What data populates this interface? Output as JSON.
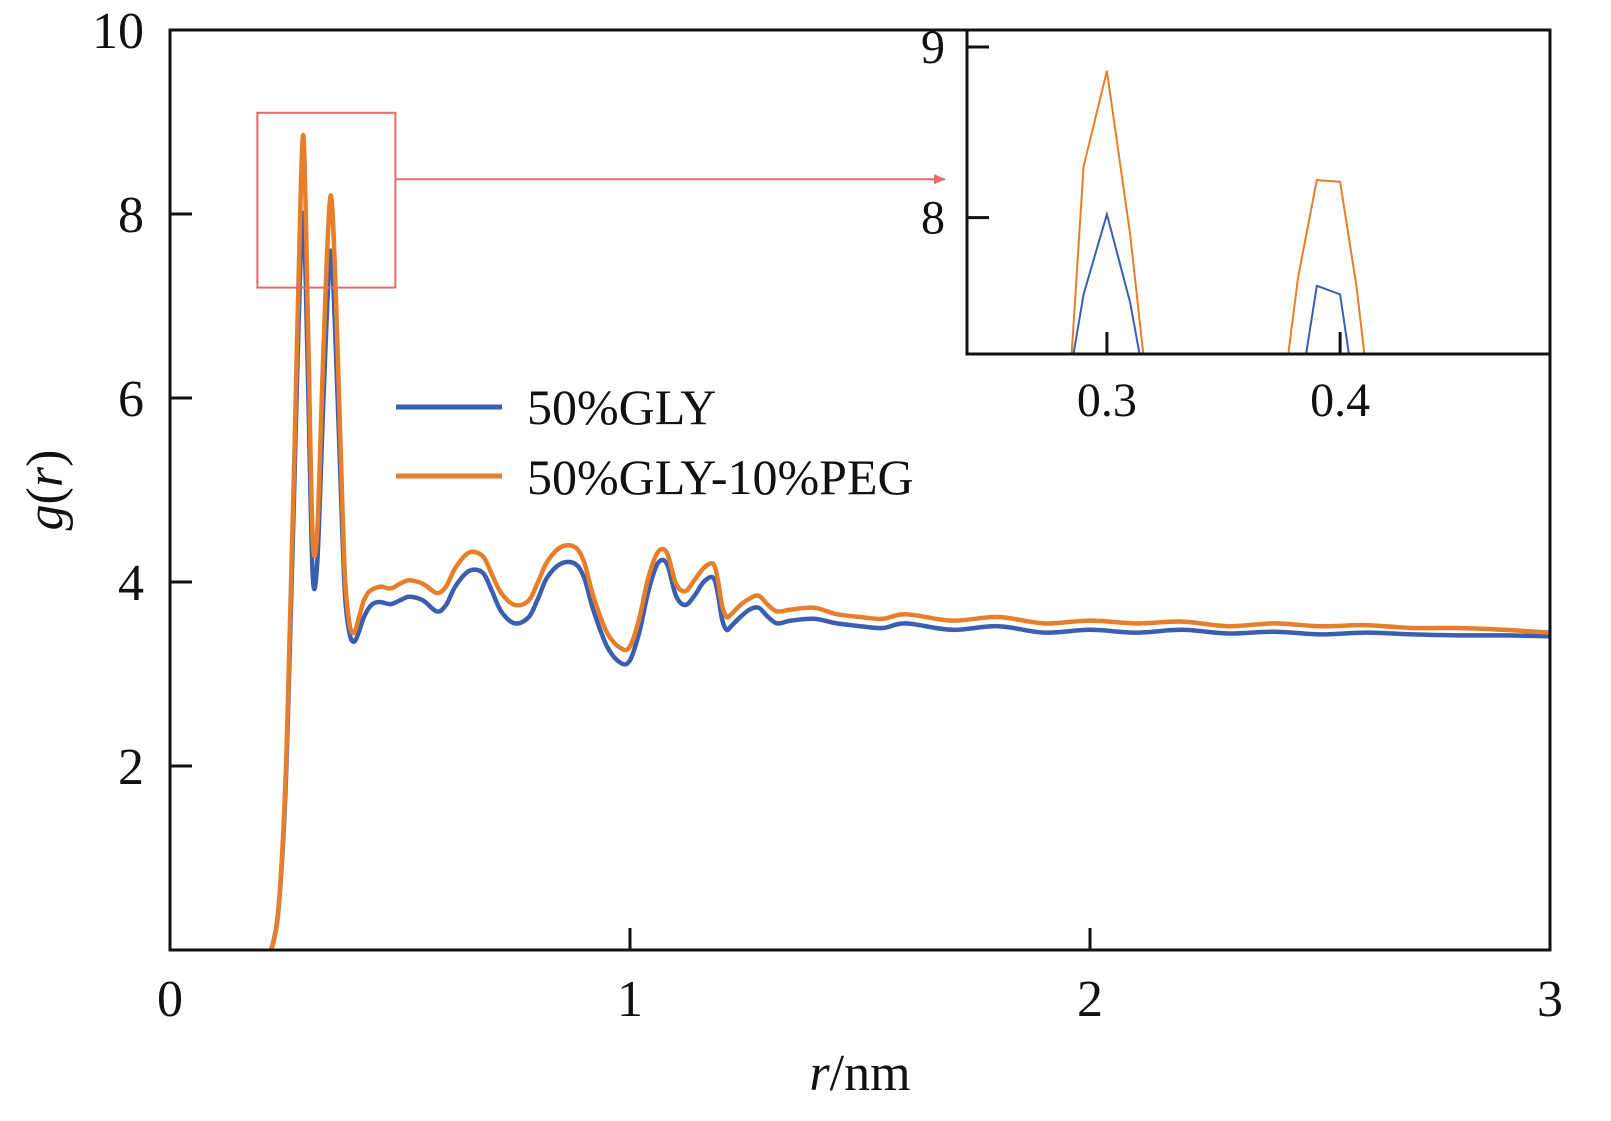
{
  "chart_data": {
    "type": "line",
    "xlabel": "r/nm",
    "xlabel_italic_part": "r",
    "xlabel_unit_part": "/nm",
    "ylabel": "g(r)",
    "ylabel_parts": [
      "g",
      "(",
      "r",
      ")"
    ],
    "xlim": [
      0,
      3
    ],
    "ylim": [
      0,
      10
    ],
    "x_ticks": [
      0,
      1,
      2,
      3
    ],
    "x_tick_labels": [
      "0",
      "1",
      "2",
      "3"
    ],
    "y_ticks": [
      2,
      4,
      6,
      8,
      10
    ],
    "y_tick_labels": [
      "2",
      "4",
      "6",
      "8",
      "10"
    ],
    "grid": false,
    "legend_position": "center-left",
    "series": [
      {
        "name": "50%GLY",
        "color": "#3a5fae",
        "x": [
          0.22,
          0.235,
          0.25,
          0.26,
          0.27,
          0.28,
          0.29,
          0.3,
          0.31,
          0.32,
          0.33,
          0.34,
          0.35,
          0.36,
          0.37,
          0.38,
          0.39,
          0.4,
          0.41,
          0.42,
          0.43,
          0.44,
          0.45,
          0.46,
          0.48,
          0.5,
          0.52,
          0.55,
          0.58,
          0.6,
          0.62,
          0.65,
          0.68,
          0.7,
          0.72,
          0.75,
          0.78,
          0.8,
          0.82,
          0.85,
          0.88,
          0.9,
          0.92,
          0.95,
          0.98,
          1.0,
          1.02,
          1.04,
          1.06,
          1.08,
          1.1,
          1.12,
          1.14,
          1.16,
          1.18,
          1.19,
          1.2,
          1.21,
          1.22,
          1.24,
          1.26,
          1.28,
          1.3,
          1.32,
          1.35,
          1.4,
          1.45,
          1.5,
          1.55,
          1.6,
          1.7,
          1.8,
          1.9,
          2.0,
          2.1,
          2.2,
          2.3,
          2.4,
          2.5,
          2.6,
          2.7,
          2.8,
          2.9,
          3.0
        ],
        "values": [
          0,
          0.4,
          1.6,
          3.2,
          5.0,
          6.9,
          8.0,
          6.2,
          4.1,
          4.2,
          5.5,
          6.8,
          7.6,
          6.6,
          5.2,
          3.9,
          3.45,
          3.35,
          3.45,
          3.6,
          3.7,
          3.76,
          3.78,
          3.78,
          3.76,
          3.8,
          3.84,
          3.8,
          3.68,
          3.75,
          3.95,
          4.12,
          4.1,
          3.9,
          3.68,
          3.55,
          3.62,
          3.82,
          4.05,
          4.2,
          4.2,
          4.05,
          3.7,
          3.3,
          3.12,
          3.15,
          3.45,
          3.9,
          4.2,
          4.2,
          3.85,
          3.75,
          3.85,
          4.0,
          4.05,
          3.9,
          3.6,
          3.48,
          3.52,
          3.62,
          3.7,
          3.72,
          3.62,
          3.55,
          3.58,
          3.6,
          3.55,
          3.52,
          3.5,
          3.55,
          3.48,
          3.52,
          3.45,
          3.48,
          3.45,
          3.48,
          3.44,
          3.46,
          3.43,
          3.45,
          3.43,
          3.42,
          3.42,
          3.41
        ]
      },
      {
        "name": "50%GLY-10%PEG",
        "color": "#e67e2c",
        "x": [
          0.22,
          0.235,
          0.25,
          0.26,
          0.27,
          0.28,
          0.29,
          0.3,
          0.31,
          0.32,
          0.33,
          0.34,
          0.35,
          0.36,
          0.37,
          0.38,
          0.39,
          0.4,
          0.41,
          0.42,
          0.43,
          0.44,
          0.45,
          0.46,
          0.48,
          0.5,
          0.52,
          0.55,
          0.58,
          0.6,
          0.62,
          0.65,
          0.68,
          0.7,
          0.72,
          0.75,
          0.78,
          0.8,
          0.82,
          0.85,
          0.88,
          0.9,
          0.92,
          0.95,
          0.98,
          1.0,
          1.02,
          1.04,
          1.06,
          1.08,
          1.1,
          1.12,
          1.14,
          1.16,
          1.18,
          1.19,
          1.2,
          1.21,
          1.22,
          1.24,
          1.26,
          1.28,
          1.3,
          1.32,
          1.35,
          1.4,
          1.45,
          1.5,
          1.55,
          1.6,
          1.7,
          1.8,
          1.9,
          2.0,
          2.1,
          2.2,
          2.3,
          2.4,
          2.5,
          2.6,
          2.7,
          2.8,
          2.9,
          3.0
        ],
        "values": [
          0,
          0.4,
          1.7,
          3.4,
          5.3,
          7.4,
          8.85,
          6.8,
          4.5,
          4.55,
          6.0,
          7.4,
          8.2,
          7.2,
          5.6,
          4.1,
          3.55,
          3.45,
          3.6,
          3.78,
          3.88,
          3.92,
          3.94,
          3.95,
          3.93,
          3.98,
          4.02,
          3.98,
          3.88,
          3.95,
          4.15,
          4.32,
          4.28,
          4.08,
          3.88,
          3.75,
          3.8,
          4.0,
          4.22,
          4.38,
          4.38,
          4.22,
          3.85,
          3.45,
          3.28,
          3.3,
          3.6,
          4.05,
          4.32,
          4.32,
          3.98,
          3.9,
          4.02,
          4.15,
          4.2,
          4.05,
          3.75,
          3.62,
          3.65,
          3.75,
          3.82,
          3.85,
          3.75,
          3.68,
          3.7,
          3.72,
          3.65,
          3.62,
          3.6,
          3.65,
          3.58,
          3.62,
          3.55,
          3.58,
          3.55,
          3.57,
          3.52,
          3.55,
          3.52,
          3.53,
          3.5,
          3.5,
          3.48,
          3.45
        ]
      }
    ],
    "zoom_box": {
      "xlim": [
        0.19,
        0.49
      ],
      "ylim": [
        7.2,
        9.1
      ],
      "color": "#e8696b"
    },
    "inset": {
      "xlim": [
        0.24,
        0.49
      ],
      "ylim": [
        7.2,
        9.1
      ],
      "x_ticks": [
        0.3,
        0.4
      ],
      "x_tick_labels": [
        "0.3",
        "0.4"
      ],
      "y_ticks": [
        8,
        9
      ],
      "y_tick_labels": [
        "8",
        "9"
      ],
      "series": [
        {
          "name": "50%GLY",
          "x": [
            0.282,
            0.29,
            0.3,
            0.31,
            0.318,
            0.382,
            0.39,
            0.4,
            0.407
          ],
          "values": [
            6.9,
            7.55,
            8.02,
            7.5,
            6.9,
            6.9,
            7.6,
            7.55,
            6.9
          ]
        },
        {
          "name": "50%GLY-10%PEG",
          "x": [
            0.283,
            0.29,
            0.3,
            0.31,
            0.318,
            0.375,
            0.382,
            0.39,
            0.4,
            0.407,
            0.413
          ],
          "values": [
            6.8,
            8.3,
            8.86,
            7.9,
            6.9,
            6.9,
            7.65,
            8.22,
            8.21,
            7.6,
            6.9
          ]
        }
      ]
    }
  }
}
